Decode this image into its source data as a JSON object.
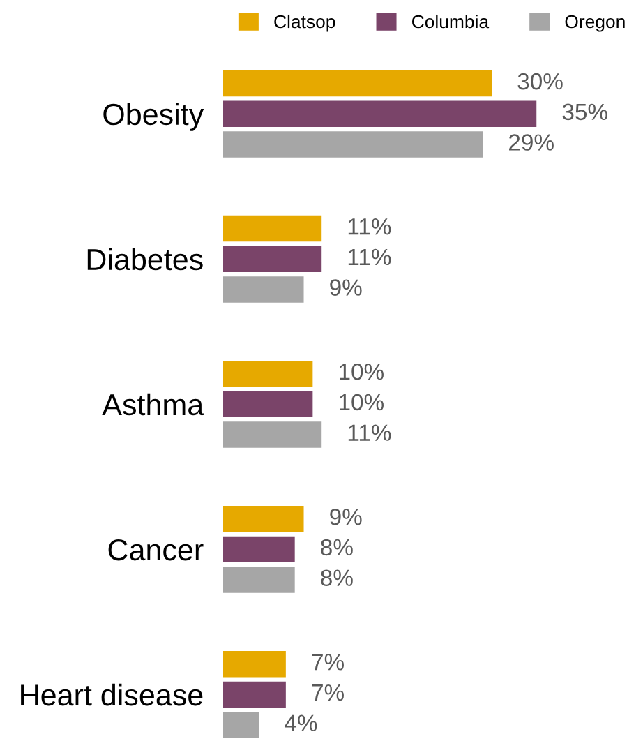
{
  "chart_data": {
    "type": "bar",
    "orientation": "horizontal",
    "categories": [
      "Obesity",
      "Diabetes",
      "Asthma",
      "Cancer",
      "Heart disease"
    ],
    "series": [
      {
        "name": "Clatsop",
        "color": "#e6a900",
        "values": [
          30,
          11,
          10,
          9,
          7
        ],
        "value_labels": [
          "30%",
          "11%",
          "10%",
          "9%",
          "7%"
        ]
      },
      {
        "name": "Columbia",
        "color": "#7a4469",
        "values": [
          35,
          11,
          10,
          8,
          7
        ],
        "value_labels": [
          "35%",
          "11%",
          "10%",
          "8%",
          "7%"
        ]
      },
      {
        "name": "Oregon",
        "color": "#a6a6a6",
        "values": [
          29,
          9,
          11,
          8,
          4
        ],
        "value_labels": [
          "29%",
          "9%",
          "11%",
          "8%",
          "4%"
        ]
      }
    ],
    "legend": "top",
    "tick_labels": "y"
  }
}
